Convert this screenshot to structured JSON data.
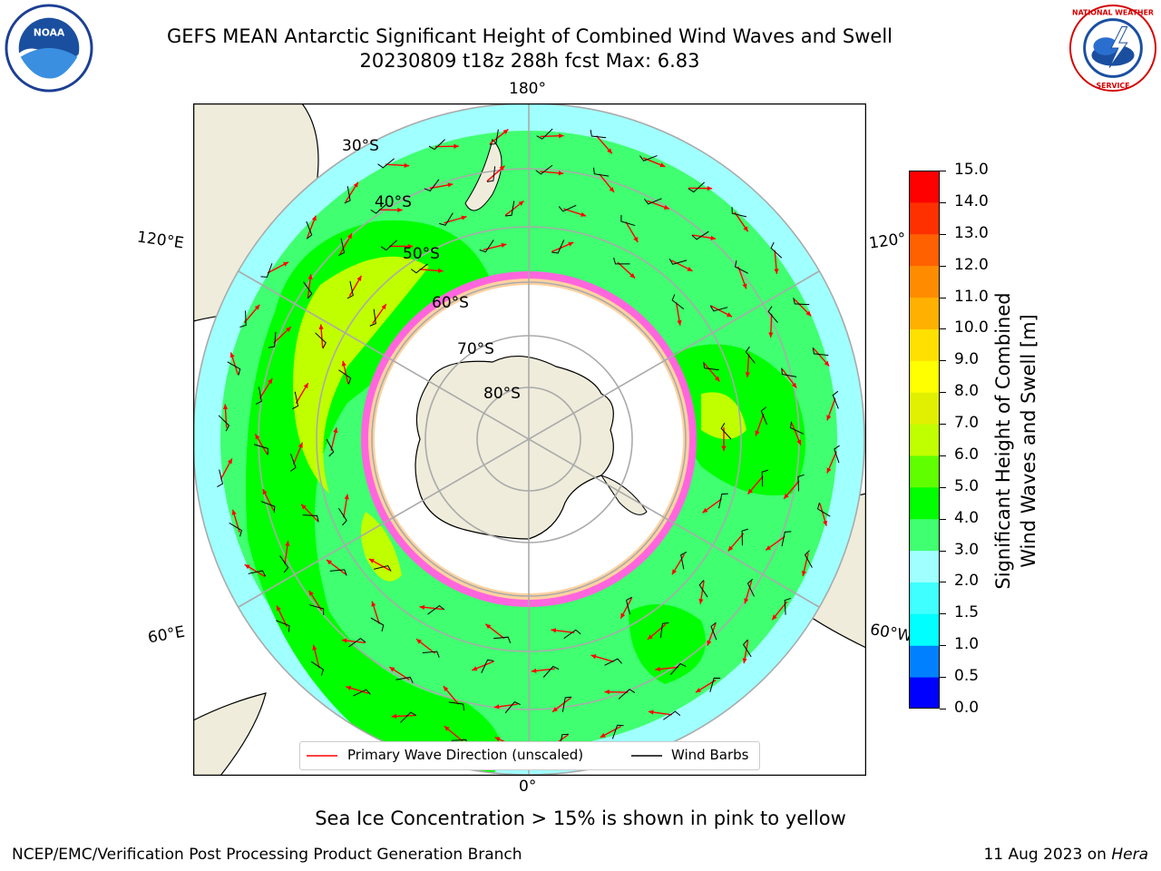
{
  "title": {
    "line1": "GEFS MEAN Antarctic Significant Height of Combined Wind Waves and Swell",
    "line2": "20230809 t18z 288h fcst   Max: 6.83"
  },
  "logos": {
    "left": "NOAA",
    "right": "NATIONAL WEATHER SERVICE"
  },
  "map": {
    "projection": "south-polar-stereographic",
    "longitude_labels": {
      "top": "180°",
      "bottom": "0°",
      "upper_left": "120°E",
      "lower_left": "60°E",
      "upper_right": "120°",
      "lower_right": "60°W"
    },
    "latitude_labels": [
      "30°S",
      "40°S",
      "50°S",
      "60°S",
      "70°S",
      "80°S"
    ],
    "legend": {
      "wave_label": "Primary Wave Direction (unscaled)",
      "barb_label": "Wind Barbs",
      "wave_color": "#ff0000",
      "barb_color": "#000000"
    }
  },
  "colorbar": {
    "ticks": [
      "0.0",
      "0.5",
      "1.0",
      "1.5",
      "2.0",
      "3.0",
      "4.0",
      "5.0",
      "6.0",
      "7.0",
      "8.0",
      "9.0",
      "10.0",
      "11.0",
      "12.0",
      "13.0",
      "14.0",
      "15.0"
    ],
    "colors": [
      "#0000ff",
      "#0080ff",
      "#00ffff",
      "#40ffff",
      "#a0ffff",
      "#40ff70",
      "#00ff00",
      "#60ff00",
      "#c0ff00",
      "#e0f000",
      "#ffff00",
      "#ffe000",
      "#ffb000",
      "#ff8c00",
      "#ff6000",
      "#ff3000",
      "#ff0000"
    ],
    "label_line1": "Significant Height of Combined",
    "label_line2": "Wind Waves and Swell [m]"
  },
  "caption": "Sea Ice Concentration > 15% is shown in pink to yellow",
  "footer": {
    "left": "NCEP/EMC/Verification Post Processing Product Generation Branch",
    "right_date": "11 Aug 2023 on ",
    "right_host": "Hera"
  }
}
